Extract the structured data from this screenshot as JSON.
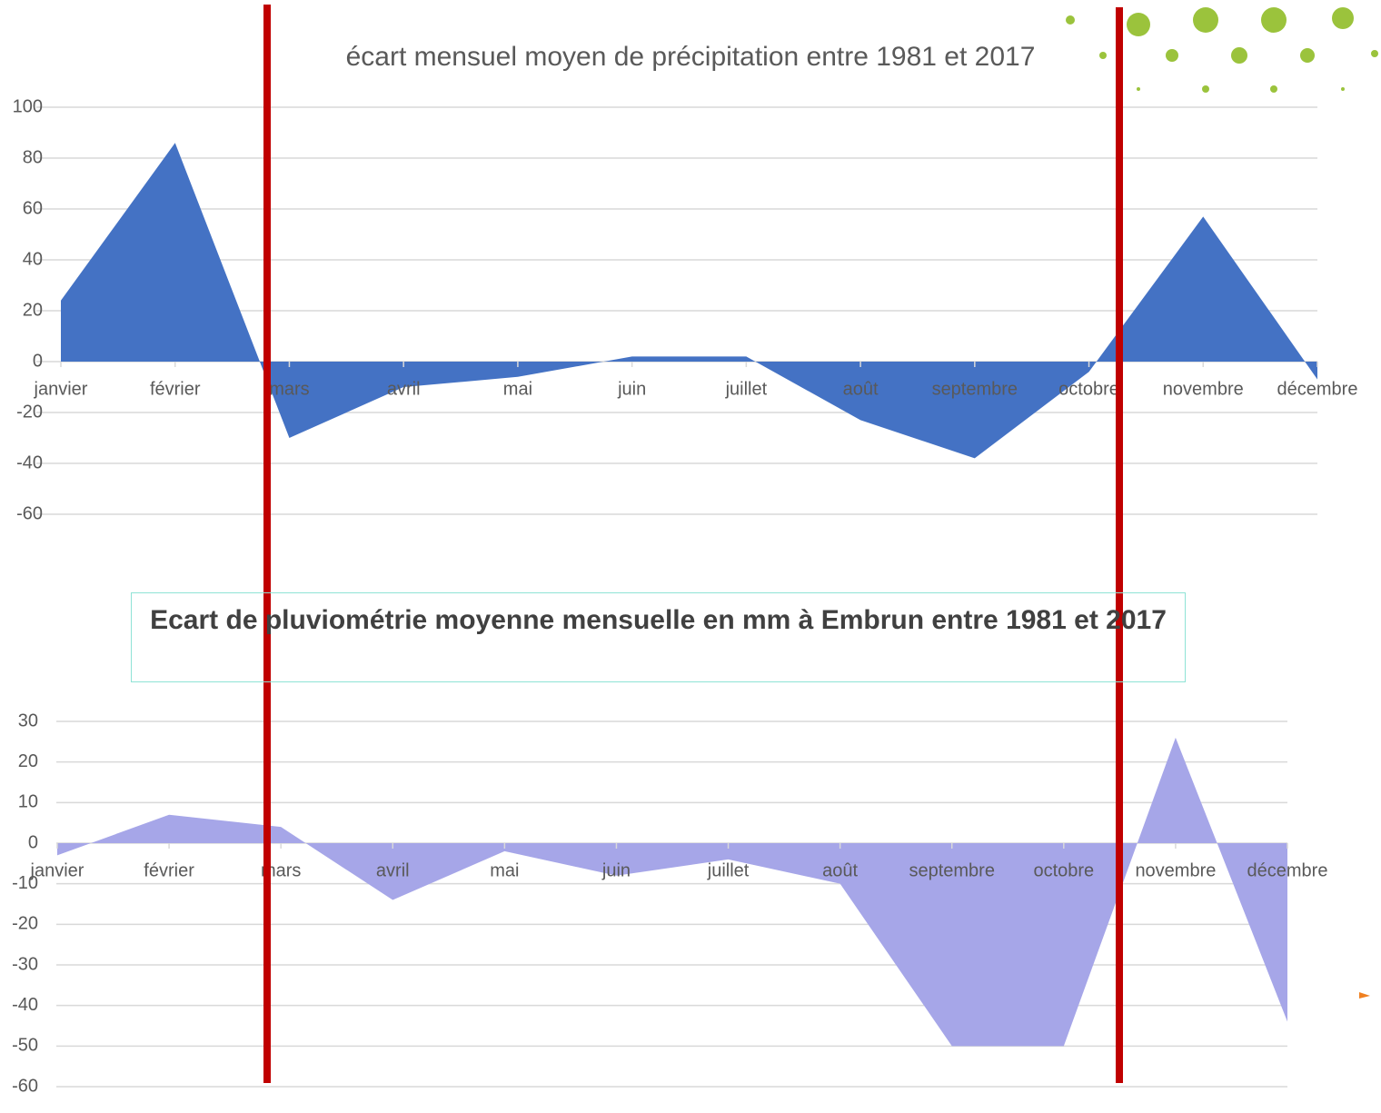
{
  "chart_data": [
    {
      "type": "area",
      "title": "écart mensuel moyen de précipitation entre 1981 et 2017",
      "categories": [
        "janvier",
        "février",
        "mars",
        "avril",
        "mai",
        "juin",
        "juillet",
        "août",
        "septembre",
        "octobre",
        "novembre",
        "décembre"
      ],
      "values": [
        24,
        86,
        -30,
        -10,
        -6,
        2,
        2,
        -23,
        -38,
        -4,
        57,
        -7
      ],
      "color": "#4472c4",
      "ylim": [
        -60,
        100
      ],
      "yticks": [
        -60,
        -40,
        -20,
        0,
        20,
        40,
        60,
        80,
        100
      ],
      "grid": true
    },
    {
      "type": "area",
      "title": "Ecart de pluviométrie moyenne mensuelle en mm à Embrun entre 1981 et 2017",
      "categories": [
        "janvier",
        "février",
        "mars",
        "avril",
        "mai",
        "juin",
        "juillet",
        "août",
        "septembre",
        "octobre",
        "novembre",
        "décembre"
      ],
      "values": [
        -3,
        7,
        4,
        -14,
        -2,
        -8,
        -4,
        -10,
        -50,
        -50,
        26,
        -44
      ],
      "color": "#a6a6e8",
      "ylim": [
        -60,
        30
      ],
      "yticks": [
        -60,
        -50,
        -40,
        -30,
        -20,
        -10,
        0,
        10,
        20,
        30
      ],
      "grid": true
    }
  ]
}
